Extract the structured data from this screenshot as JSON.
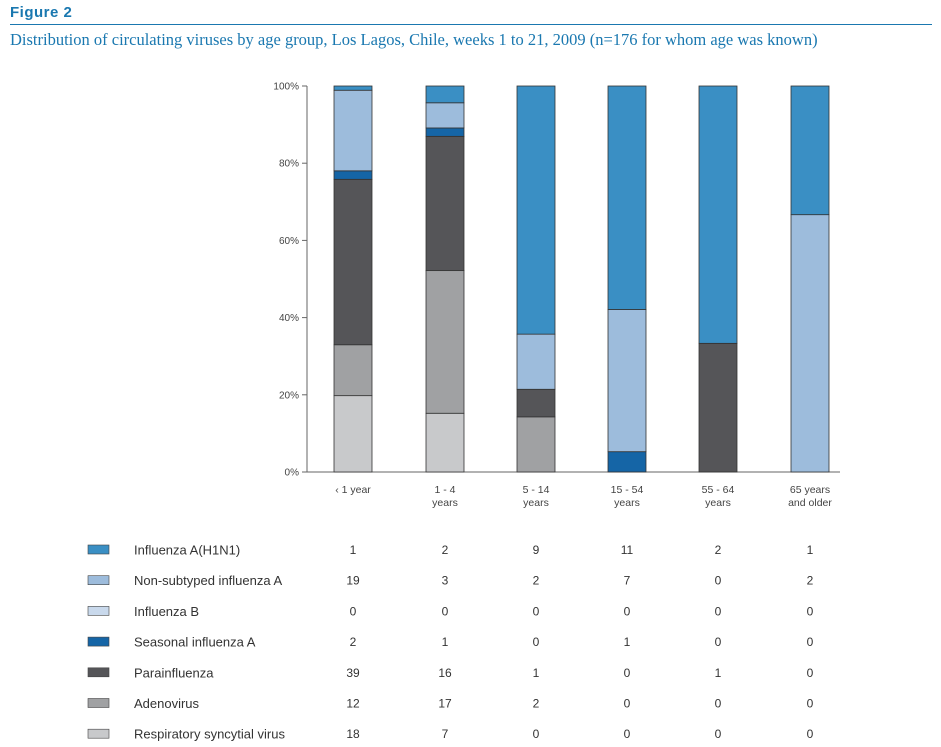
{
  "figure": {
    "label": "Figure 2",
    "title": "Distribution of circulating viruses by age group, Los Lagos, Chile, weeks 1 to 21, 2009 (n=176 for whom age was known)"
  },
  "chart_data": {
    "type": "bar",
    "stacked": true,
    "normalized_percent": true,
    "categories": [
      [
        "‹ 1 year"
      ],
      [
        "1 - 4",
        "years"
      ],
      [
        "5 - 14",
        "years"
      ],
      [
        "15 - 54",
        "years"
      ],
      [
        "55 - 64",
        "years"
      ],
      [
        "65 years",
        "and older"
      ]
    ],
    "yticks": [
      "0%",
      "20%",
      "40%",
      "60%",
      "80%",
      "100%"
    ],
    "ylim": [
      0,
      100
    ],
    "grid": false,
    "legend_position": "bottom",
    "series": [
      {
        "name": "Influenza A(H1N1)",
        "color": "#3a8fc4",
        "values": [
          1,
          2,
          9,
          11,
          2,
          1
        ]
      },
      {
        "name": "Non-subtyped influenza A",
        "color": "#9dbcdc",
        "values": [
          19,
          3,
          2,
          7,
          0,
          2
        ]
      },
      {
        "name": "Influenza B",
        "color": "#c9d9ec",
        "values": [
          0,
          0,
          0,
          0,
          0,
          0
        ]
      },
      {
        "name": "Seasonal influenza A",
        "color": "#1565a6",
        "values": [
          2,
          1,
          0,
          1,
          0,
          0
        ]
      },
      {
        "name": "Parainfluenza",
        "color": "#555558",
        "values": [
          39,
          16,
          1,
          0,
          1,
          0
        ]
      },
      {
        "name": "Adenovirus",
        "color": "#a0a1a3",
        "values": [
          12,
          17,
          2,
          0,
          0,
          0
        ]
      },
      {
        "name": "Respiratory syncytial virus",
        "color": "#c8c9cb",
        "values": [
          18,
          7,
          0,
          0,
          0,
          0
        ]
      }
    ]
  }
}
